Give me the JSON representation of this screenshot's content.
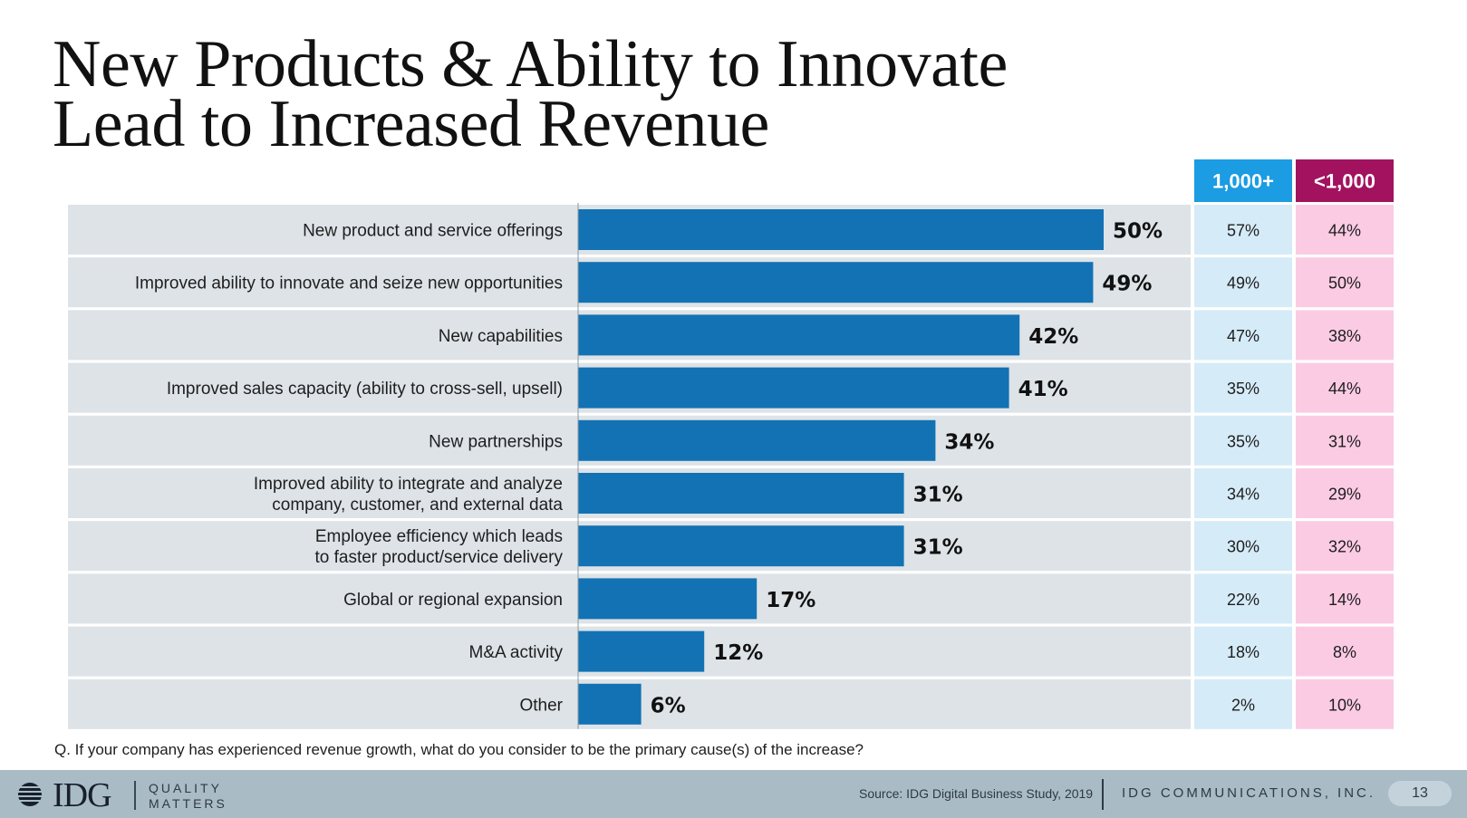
{
  "title_lines": [
    "New Products & Ability to Innovate",
    "Lead to Increased Revenue"
  ],
  "chart_data": {
    "type": "bar",
    "orientation": "horizontal",
    "categories": [
      "New product and service offerings",
      "Improved ability to innovate and seize new opportunities",
      "New capabilities",
      "Improved sales capacity (ability to cross-sell, upsell)",
      "New partnerships",
      "Improved ability to integrate and analyze\ncompany, customer, and external data",
      "Employee efficiency which leads\nto faster product/service delivery",
      "Global or regional expansion",
      "M&A activity",
      "Other"
    ],
    "values": [
      50,
      49,
      42,
      41,
      34,
      31,
      31,
      17,
      12,
      6
    ],
    "value_labels": [
      "50%",
      "49%",
      "42%",
      "41%",
      "34%",
      "31%",
      "31%",
      "17%",
      "12%",
      "6%"
    ],
    "table_columns": [
      {
        "header": "1,000+",
        "values": [
          "57%",
          "49%",
          "47%",
          "35%",
          "35%",
          "34%",
          "30%",
          "22%",
          "18%",
          "2%"
        ]
      },
      {
        "header": "<1,000",
        "values": [
          "44%",
          "50%",
          "38%",
          "44%",
          "31%",
          "29%",
          "32%",
          "14%",
          "8%",
          "10%"
        ]
      }
    ],
    "xlim": [
      0,
      50
    ],
    "grid": false,
    "legend": "none"
  },
  "colors": {
    "bar": "#1272b4",
    "row_bg": "#dde3e7",
    "col1_header": "#1b9ce3",
    "col1_cell": "#d5ebf8",
    "col2_header": "#a2125f",
    "col2_cell": "#fbcbe4",
    "footer": "#a9bcc6"
  },
  "question": "Q. If your company has experienced revenue growth, what do you consider to be the primary cause(s) of the increase?",
  "footer": {
    "logo": "IDG",
    "tagline_lines": [
      "QUALITY",
      "MATTERS"
    ],
    "source": "Source: IDG Digital Business Study, 2019",
    "company": "IDG COMMUNICATIONS, INC.",
    "page_number": "13"
  }
}
